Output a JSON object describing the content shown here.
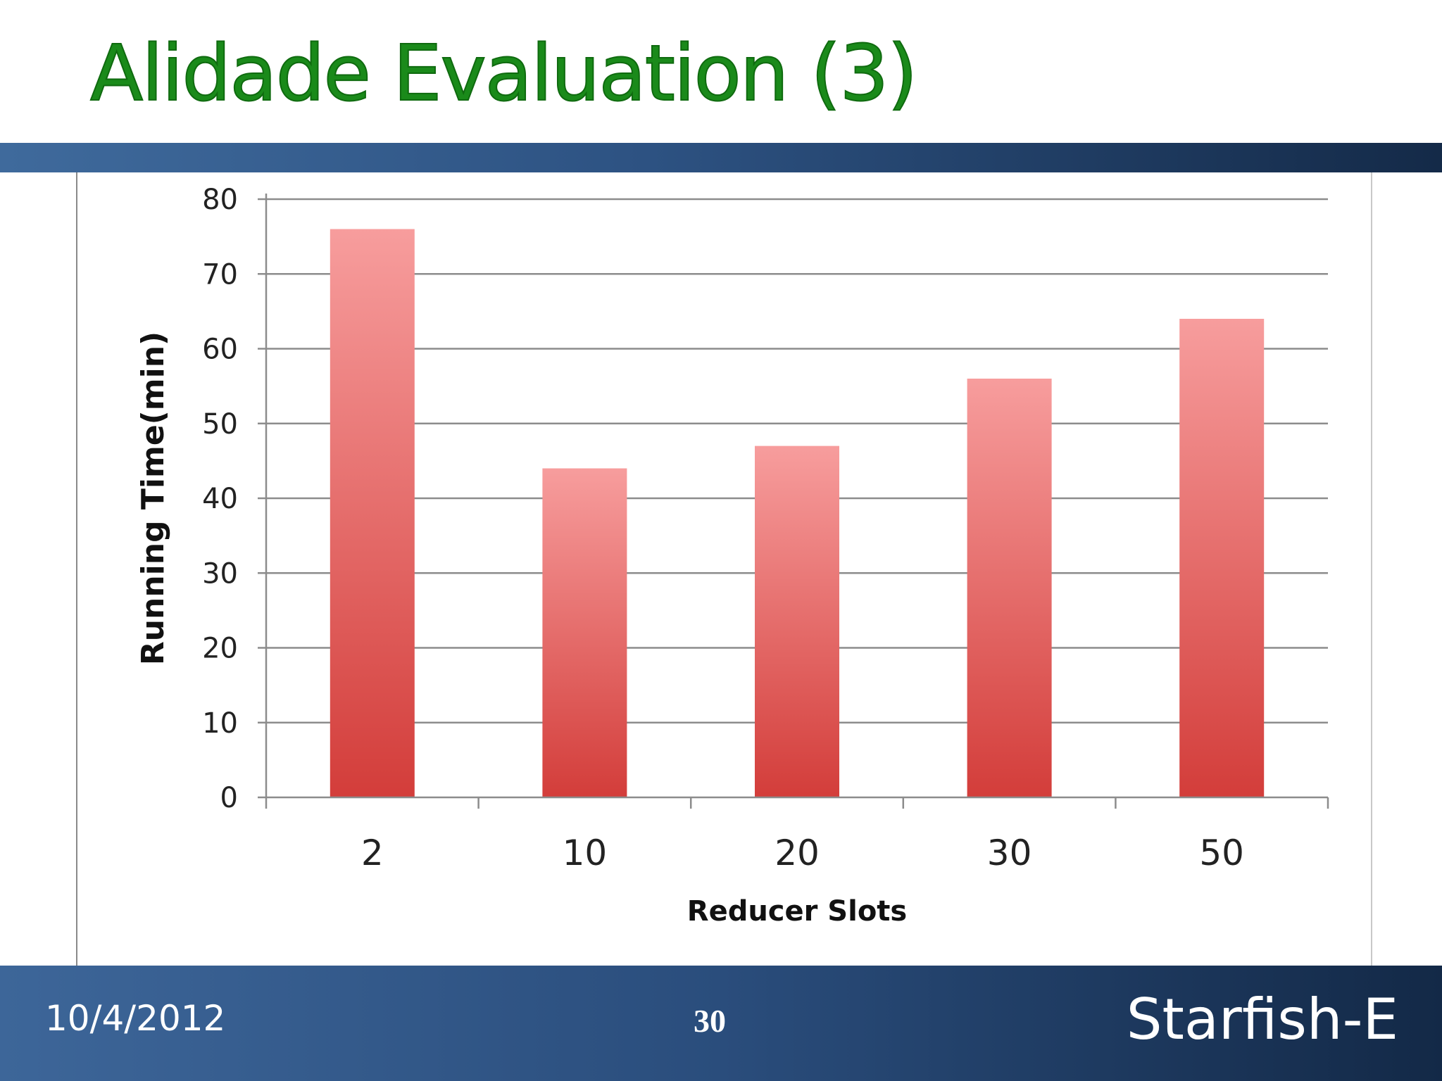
{
  "slide": {
    "title": "Alidade Evaluation (3)",
    "date": "10/4/2012",
    "page_number": "30",
    "brand": "Starfish-E"
  },
  "colors": {
    "title": "#1a8a1a",
    "bar_top": "#f79d9d",
    "bar_bottom": "#d33d3a",
    "band_light": "#3f6a9c",
    "band_dark": "#142a48"
  },
  "chart_data": {
    "type": "bar",
    "title": "",
    "xlabel": "Reducer Slots",
    "ylabel": "Running Time(min)",
    "categories": [
      "2",
      "10",
      "20",
      "30",
      "50"
    ],
    "values": [
      76,
      44,
      47,
      56,
      64
    ],
    "ylim": [
      0,
      80
    ],
    "yticks": [
      0,
      10,
      20,
      30,
      40,
      50,
      60,
      70,
      80
    ],
    "grid": true,
    "legend": "none"
  }
}
